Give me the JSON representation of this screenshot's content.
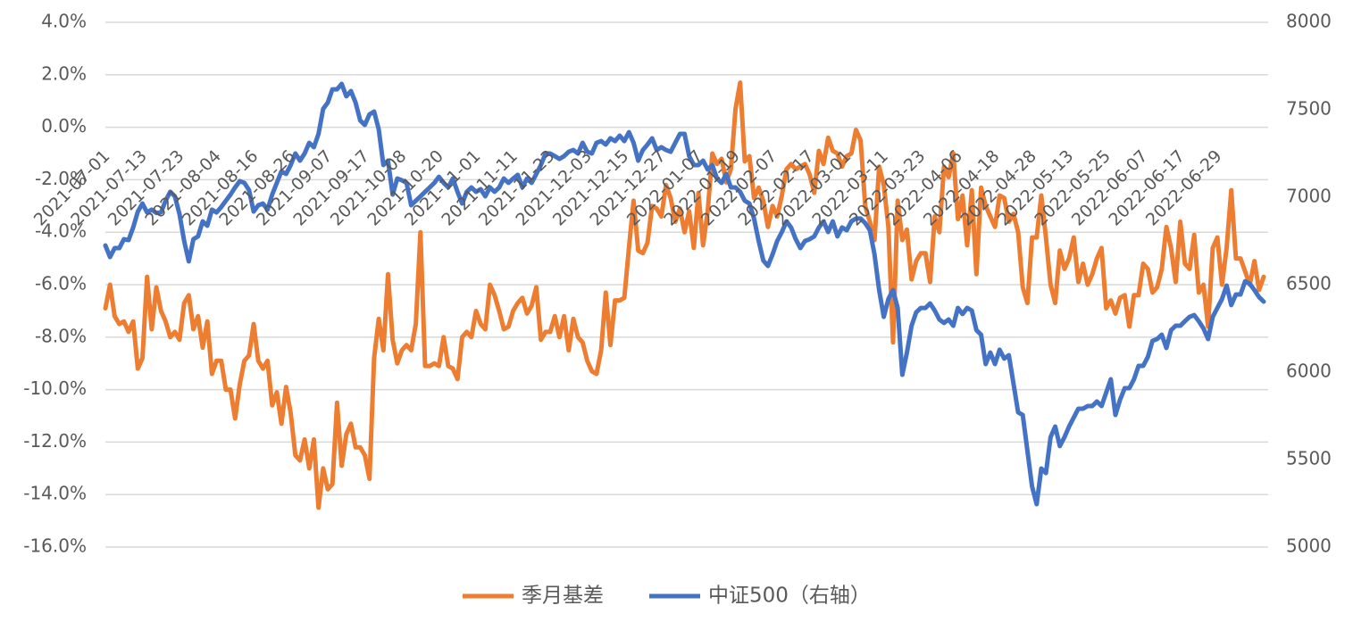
{
  "chart_data": {
    "type": "line",
    "categories": [
      "2021-07-01",
      null,
      null,
      null,
      null,
      null,
      null,
      null,
      "2021-07-13",
      null,
      null,
      null,
      null,
      null,
      null,
      null,
      "2021-07-23",
      null,
      null,
      null,
      null,
      null,
      null,
      null,
      "2021-08-04",
      null,
      null,
      null,
      null,
      null,
      null,
      null,
      "2021-08-16",
      null,
      null,
      null,
      null,
      null,
      null,
      null,
      "2021-08-26",
      null,
      null,
      null,
      null,
      null,
      null,
      null,
      "2021-09-07",
      null,
      null,
      null,
      null,
      null,
      null,
      null,
      "2021-09-17",
      null,
      null,
      null,
      null,
      null,
      null,
      null,
      "2021-10-08",
      null,
      null,
      null,
      null,
      null,
      null,
      null,
      "2021-10-20",
      null,
      null,
      null,
      null,
      null,
      null,
      null,
      "2021-11-01",
      null,
      null,
      null,
      null,
      null,
      null,
      null,
      "2021-11-11",
      null,
      null,
      null,
      null,
      null,
      null,
      null,
      "2021-11-23",
      null,
      null,
      null,
      null,
      null,
      null,
      null,
      "2021-12-03",
      null,
      null,
      null,
      null,
      null,
      null,
      null,
      "2021-12-15",
      null,
      null,
      null,
      null,
      null,
      null,
      null,
      "2021-12-27",
      null,
      null,
      null,
      null,
      null,
      null,
      null,
      "2022-01-07",
      null,
      null,
      null,
      null,
      null,
      null,
      null,
      "2022-01-19",
      null,
      null,
      null,
      null,
      null,
      null,
      null,
      "2022-02-07",
      null,
      null,
      null,
      null,
      null,
      null,
      null,
      "2022-02-17",
      null,
      null,
      null,
      null,
      null,
      null,
      null,
      "2022-03-01",
      null,
      null,
      null,
      null,
      null,
      null,
      null,
      "2022-03-11",
      null,
      null,
      null,
      null,
      null,
      null,
      null,
      "2022-03-23",
      null,
      null,
      null,
      null,
      null,
      null,
      null,
      "2022-04-06",
      null,
      null,
      null,
      null,
      null,
      null,
      null,
      "2022-04-18",
      null,
      null,
      null,
      null,
      null,
      null,
      null,
      "2022-04-28",
      null,
      null,
      null,
      null,
      null,
      null,
      null,
      "2022-05-13",
      null,
      null,
      null,
      null,
      null,
      null,
      null,
      "2022-05-25",
      null,
      null,
      null,
      null,
      null,
      null,
      null,
      "2022-06-07",
      null,
      null,
      null,
      null,
      null,
      null,
      null,
      "2022-06-17",
      null,
      null,
      null,
      null,
      null,
      null,
      null,
      "2022-06-29",
      null,
      null,
      null,
      null,
      null,
      null,
      null,
      null,
      null,
      null
    ],
    "series": [
      {
        "name": "季月基差",
        "color": "#ED7D31",
        "axis": "y",
        "values": [
          -6.9,
          -6.0,
          -7.2,
          -7.5,
          -7.4,
          -7.8,
          -7.4,
          -9.2,
          -8.8,
          -5.7,
          -7.7,
          -6.1,
          -7.0,
          -7.4,
          -8.0,
          -7.8,
          -8.1,
          -6.7,
          -6.4,
          -7.7,
          -7.2,
          -8.4,
          -7.4,
          -9.4,
          -8.9,
          -8.9,
          -10.0,
          -10.0,
          -11.1,
          -9.8,
          -8.9,
          -8.7,
          -7.5,
          -8.9,
          -9.2,
          -8.9,
          -10.6,
          -10.1,
          -11.3,
          -9.9,
          -10.9,
          -12.5,
          -12.7,
          -11.9,
          -13.0,
          -11.9,
          -14.5,
          -13.0,
          -13.8,
          -13.6,
          -10.5,
          -12.9,
          -11.7,
          -11.3,
          -12.2,
          -12.2,
          -12.5,
          -13.4,
          -8.8,
          -7.3,
          -8.5,
          -5.6,
          -8.1,
          -9.0,
          -8.5,
          -8.3,
          -8.5,
          -7.5,
          -4.0,
          -9.1,
          -9.1,
          -9.0,
          -9.1,
          -8.0,
          -9.1,
          -9.2,
          -9.6,
          -8.0,
          -7.8,
          -8.0,
          -7.0,
          -7.5,
          -7.7,
          -6.0,
          -6.4,
          -7.0,
          -7.7,
          -7.6,
          -7.0,
          -6.7,
          -6.5,
          -7.1,
          -6.8,
          -6.1,
          -8.1,
          -7.8,
          -7.8,
          -7.2,
          -8.0,
          -7.2,
          -8.5,
          -7.3,
          -8.0,
          -8.2,
          -8.9,
          -9.3,
          -9.4,
          -8.5,
          -6.3,
          -8.3,
          -6.6,
          -6.6,
          -6.5,
          -4.6,
          -2.8,
          -4.7,
          -4.8,
          -4.4,
          -3.0,
          -3.1,
          -3.4,
          -2.2,
          -2.7,
          -3.6,
          -3.1,
          -4.0,
          -3.2,
          -4.6,
          -2.5,
          -4.5,
          -3.2,
          -1.0,
          -1.4,
          -1.2,
          -2.1,
          -1.6,
          0.7,
          1.7,
          -1.3,
          -1.1,
          -2.7,
          -2.3,
          -2.8,
          -3.8,
          -3.0,
          -3.4,
          -2.6,
          -1.6,
          -1.4,
          -1.6,
          -1.5,
          -1.4,
          -1.8,
          -2.5,
          -0.9,
          -1.4,
          -0.4,
          -0.9,
          -1.0,
          -1.5,
          -1.1,
          -1.0,
          -0.1,
          -0.5,
          -3.0,
          -3.6,
          -4.3,
          -1.5,
          -2.2,
          -3.8,
          -8.2,
          -2.8,
          -4.3,
          -3.9,
          -5.8,
          -5.1,
          -4.8,
          -4.8,
          -5.9,
          -3.4,
          -4.0,
          -1.5,
          -1.9,
          -1.0,
          -3.5,
          -2.6,
          -4.5,
          -2.4,
          -5.6,
          -2.3,
          -3.0,
          -3.4,
          -3.8,
          -2.6,
          -2.7,
          -3.6,
          -3.3,
          -4.0,
          -6.1,
          -6.7,
          -4.2,
          -4.2,
          -2.6,
          -4.2,
          -6.0,
          -6.7,
          -4.7,
          -5.4,
          -5.0,
          -4.2,
          -5.9,
          -5.2,
          -6.0,
          -5.6,
          -5.0,
          -4.6,
          -6.9,
          -6.6,
          -7.1,
          -6.5,
          -6.4,
          -7.6,
          -6.4,
          -6.4,
          -5.2,
          -5.4,
          -6.3,
          -6.1,
          -5.4,
          -3.8,
          -4.6,
          -5.9,
          -3.6,
          -5.2,
          -5.4,
          -4.1,
          -6.3,
          -6.0,
          -7.6,
          -4.6,
          -4.2,
          -6.0,
          -4.6,
          -2.4,
          -5.0,
          -5.0,
          -5.5,
          -6.0,
          -5.1,
          -6.2,
          -5.7
        ]
      },
      {
        "name": "中证500（右轴）",
        "color": "#4472C4",
        "axis": "y2",
        "values": [
          6724,
          6658,
          6709,
          6709,
          6760,
          6755,
          6827,
          6918,
          6964,
          6913,
          6929,
          6910,
          6913,
          6980,
          7031,
          7005,
          6903,
          6750,
          6633,
          6760,
          6776,
          6862,
          6837,
          6929,
          6913,
          6944,
          6980,
          7015,
          7056,
          7092,
          7082,
          7041,
          6918,
          6954,
          6964,
          6929,
          7015,
          7082,
          7148,
          7133,
          7184,
          7250,
          7209,
          7250,
          7311,
          7286,
          7362,
          7505,
          7541,
          7617,
          7617,
          7648,
          7577,
          7607,
          7541,
          7439,
          7413,
          7474,
          7490,
          7388,
          7184,
          7209,
          7015,
          7107,
          7097,
          7082,
          6954,
          6980,
          7005,
          7031,
          7056,
          7082,
          7117,
          7082,
          7056,
          7107,
          7031,
          6964,
          7031,
          7056,
          7031,
          7046,
          7005,
          7056,
          7031,
          7056,
          7107,
          7082,
          7107,
          7128,
          7056,
          7107,
          7082,
          7133,
          7184,
          7250,
          7250,
          7235,
          7219,
          7235,
          7260,
          7270,
          7250,
          7311,
          7260,
          7250,
          7311,
          7321,
          7301,
          7337,
          7321,
          7352,
          7321,
          7372,
          7311,
          7209,
          7270,
          7301,
          7337,
          7270,
          7286,
          7270,
          7260,
          7311,
          7362,
          7362,
          7235,
          7184,
          7184,
          7209,
          7158,
          7184,
          7107,
          7082,
          7133,
          7056,
          7056,
          7031,
          6980,
          6964,
          6878,
          6750,
          6638,
          6607,
          6673,
          6750,
          6801,
          6862,
          6827,
          6760,
          6709,
          6750,
          6760,
          6776,
          6827,
          6862,
          6801,
          6862,
          6776,
          6827,
          6811,
          6862,
          6878,
          6878,
          6852,
          6811,
          6673,
          6469,
          6316,
          6418,
          6469,
          6367,
          5985,
          6112,
          6265,
          6342,
          6367,
          6367,
          6393,
          6352,
          6301,
          6281,
          6301,
          6265,
          6367,
          6332,
          6367,
          6352,
          6240,
          6214,
          6046,
          6112,
          6046,
          6128,
          6077,
          6097,
          5934,
          5770,
          5755,
          5551,
          5347,
          5245,
          5449,
          5423,
          5628,
          5689,
          5577,
          5628,
          5689,
          5740,
          5791,
          5791,
          5806,
          5806,
          5832,
          5806,
          5883,
          5959,
          5755,
          5842,
          5908,
          5908,
          5959,
          6036,
          6036,
          6087,
          6179,
          6189,
          6214,
          6138,
          6240,
          6265,
          6265,
          6291,
          6316,
          6326,
          6291,
          6250,
          6189,
          6316,
          6367,
          6418,
          6495,
          6383,
          6444,
          6444,
          6520,
          6505,
          6469,
          6429,
          6403
        ]
      }
    ],
    "ylim": [
      -16,
      4
    ],
    "yticks": [
      {
        "value": -16,
        "label": "-16.0%"
      },
      {
        "value": -14,
        "label": "-14.0%"
      },
      {
        "value": -12,
        "label": "-12.0%"
      },
      {
        "value": -10,
        "label": "-10.0%"
      },
      {
        "value": -8,
        "label": "-8.0%"
      },
      {
        "value": -6,
        "label": "-6.0%"
      },
      {
        "value": -4,
        "label": "-4.0%"
      },
      {
        "value": -2,
        "label": "-2.0%"
      },
      {
        "value": 0,
        "label": "0.0%"
      },
      {
        "value": 2,
        "label": "2.0%"
      },
      {
        "value": 4,
        "label": "4.0%"
      }
    ],
    "y2lim": [
      5000,
      8000
    ],
    "y2ticks": [
      5000,
      5500,
      6000,
      6500,
      7000,
      7500,
      8000
    ],
    "grid": true,
    "legend": "bottom"
  }
}
